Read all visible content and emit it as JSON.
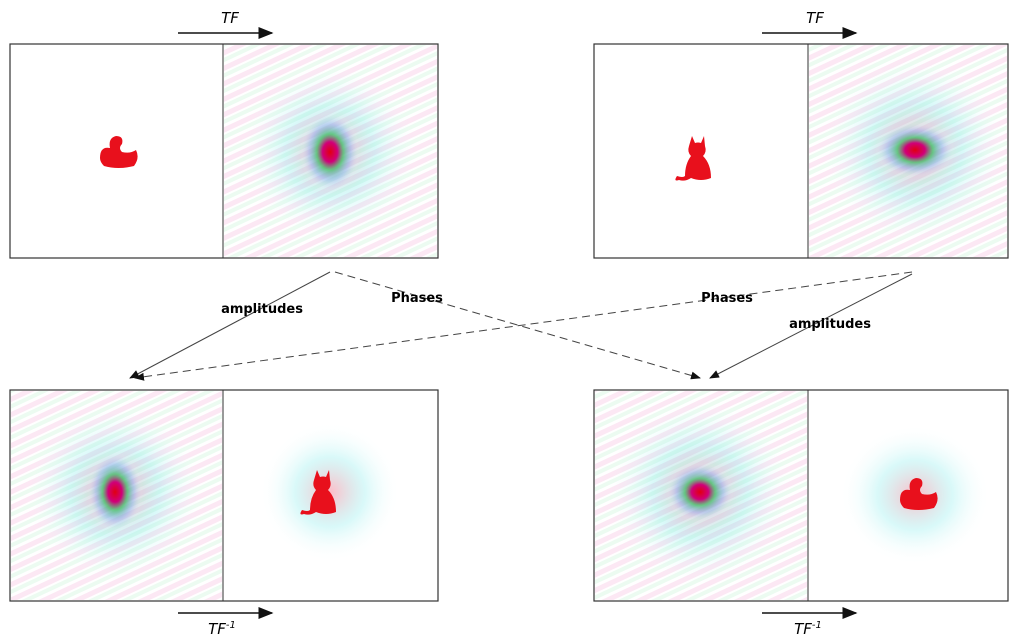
{
  "top_left": {
    "transform": "TF"
  },
  "top_right": {
    "transform": "TF"
  },
  "bottom_left": {
    "inverse_transform": {
      "base": "TF",
      "sup": "-1"
    }
  },
  "bottom_right": {
    "inverse_transform": {
      "base": "TF",
      "sup": "-1"
    }
  },
  "arrows": {
    "left_amplitudes": "amplitudes",
    "left_phases": "Phases",
    "right_phases": "Phases",
    "right_amplitudes": "amplitudes"
  }
}
